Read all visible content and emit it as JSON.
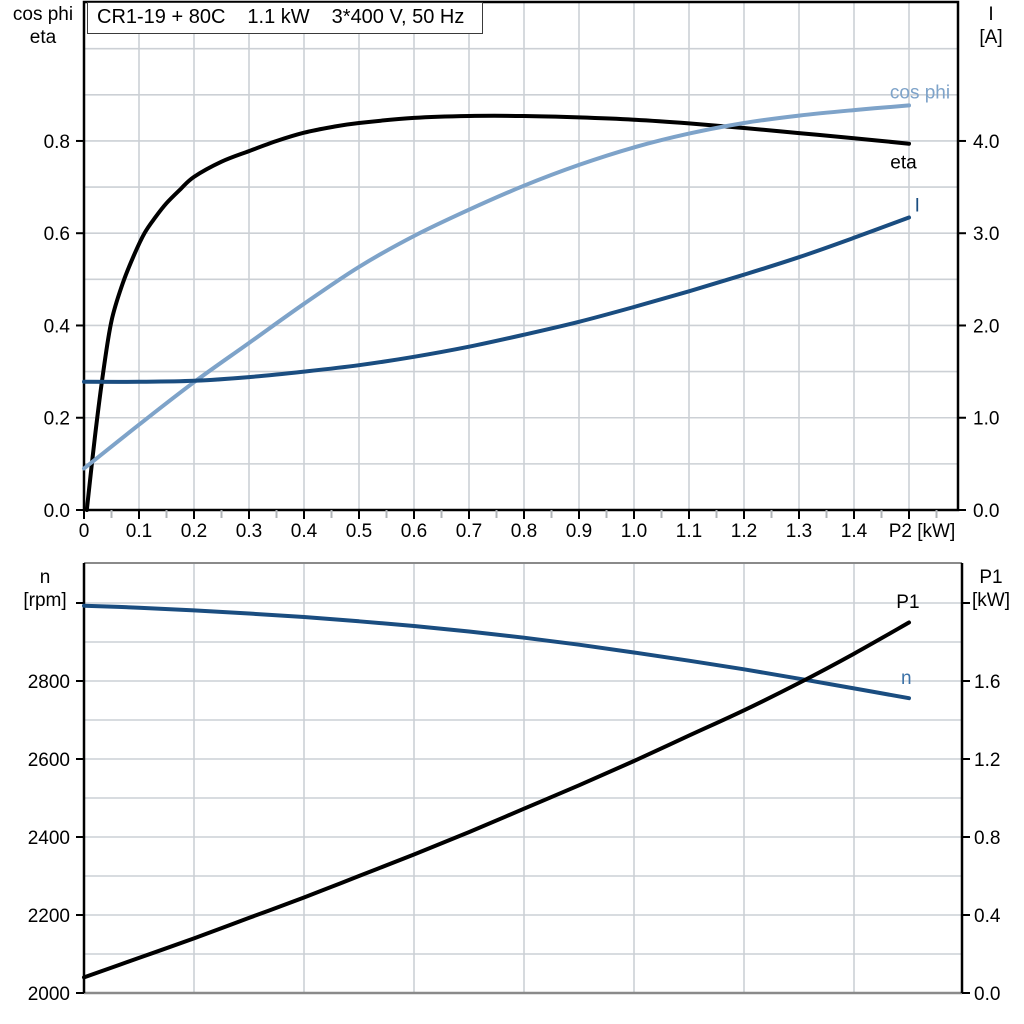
{
  "title_box": {
    "model": "CR1-19 + 80C",
    "power": "1.1 kW",
    "supply": "3*400 V, 50 Hz"
  },
  "axis_headers": {
    "top_left": [
      "cos phi",
      "eta"
    ],
    "top_right": [
      "I",
      "[A]"
    ],
    "bottom_left": [
      "n",
      "[rpm]"
    ],
    "bottom_right": [
      "P1",
      "[kW]"
    ]
  },
  "colors": {
    "black": "#000000",
    "light_blue": "#7ea3c9",
    "dark_blue": "#1a4d80",
    "n_label_blue": "#3c72a8",
    "grid": "#ccd0d5",
    "frame_gray": "#8a8a8a"
  },
  "chart_data": [
    {
      "type": "line",
      "title": "CR1-19 + 80C  1.1 kW  3*400 V, 50 Hz",
      "xlabel": "P2 [kW]",
      "x_range": [
        0,
        1.59
      ],
      "left_axis_range": [
        0,
        1.1
      ],
      "right_axis_range": [
        0,
        5.5
      ],
      "grid": "on",
      "x_tick_labels": [
        "0",
        "0.1",
        "0.2",
        "0.3",
        "0.4",
        "0.5",
        "0.6",
        "0.7",
        "0.8",
        "0.9",
        "1.0",
        "1.1",
        "1.2",
        "1.3",
        "1.4"
      ],
      "left_tick_labels": [
        "0.0",
        "0.2",
        "0.4",
        "0.6",
        "0.8"
      ],
      "right_tick_labels": [
        "0.0",
        "1.0",
        "2.0",
        "3.0",
        "4.0"
      ],
      "series": [
        {
          "name": "eta",
          "axis": "left",
          "color": "#000000",
          "x": [
            0.005,
            0.02,
            0.035,
            0.05,
            0.07,
            0.09,
            0.11,
            0.13,
            0.15,
            0.175,
            0.2,
            0.25,
            0.3,
            0.35,
            0.4,
            0.45,
            0.5,
            0.6,
            0.7,
            0.8,
            0.9,
            1.0,
            1.1,
            1.2,
            1.3,
            1.4,
            1.5
          ],
          "y": [
            0.0,
            0.16,
            0.3,
            0.41,
            0.49,
            0.55,
            0.6,
            0.635,
            0.665,
            0.695,
            0.722,
            0.755,
            0.778,
            0.8,
            0.818,
            0.83,
            0.839,
            0.85,
            0.854,
            0.854,
            0.851,
            0.846,
            0.838,
            0.828,
            0.817,
            0.806,
            0.794
          ],
          "label_at": {
            "x": 1.49,
            "y": 0.755
          }
        },
        {
          "name": "cos phi",
          "axis": "left",
          "color": "#7ea3c9",
          "x": [
            0,
            0.1,
            0.2,
            0.3,
            0.4,
            0.5,
            0.6,
            0.7,
            0.8,
            0.9,
            1.0,
            1.1,
            1.2,
            1.3,
            1.4,
            1.5
          ],
          "y": [
            0.09,
            0.185,
            0.277,
            0.362,
            0.447,
            0.527,
            0.594,
            0.651,
            0.703,
            0.748,
            0.786,
            0.816,
            0.839,
            0.855,
            0.867,
            0.877
          ],
          "label_at": {
            "x": 1.52,
            "y": 0.907
          }
        },
        {
          "name": "I",
          "axis": "right",
          "color": "#1a4d80",
          "x": [
            0,
            0.1,
            0.2,
            0.3,
            0.4,
            0.5,
            0.6,
            0.7,
            0.8,
            0.9,
            1.0,
            1.1,
            1.2,
            1.3,
            1.4,
            1.5
          ],
          "y": [
            1.39,
            1.39,
            1.4,
            1.44,
            1.5,
            1.57,
            1.66,
            1.77,
            1.9,
            2.04,
            2.2,
            2.37,
            2.55,
            2.74,
            2.95,
            3.17
          ],
          "label_at": {
            "x": 1.515,
            "y": 3.31
          }
        }
      ]
    },
    {
      "type": "line",
      "xlabel": "",
      "x_range": [
        0,
        1.596
      ],
      "left_axis_range": [
        2000,
        3102
      ],
      "right_axis_range": [
        0,
        2.205
      ],
      "grid": "on",
      "x_tick_labels": [],
      "left_tick_labels": [
        "2000",
        "2200",
        "2400",
        "2600",
        "2800"
      ],
      "right_tick_labels": [
        "0.0",
        "0.4",
        "0.8",
        "1.2",
        "1.6"
      ],
      "series": [
        {
          "name": "n",
          "axis": "left",
          "color": "#1a4d80",
          "label_color": "#3c72a8",
          "x": [
            0,
            0.1,
            0.2,
            0.3,
            0.4,
            0.5,
            0.6,
            0.7,
            0.8,
            0.9,
            1.0,
            1.1,
            1.2,
            1.3,
            1.4,
            1.5
          ],
          "y": [
            2993,
            2988,
            2981,
            2973,
            2964,
            2953,
            2941,
            2927,
            2911,
            2893,
            2873,
            2852,
            2830,
            2806,
            2781,
            2756
          ],
          "label_at": {
            "x": 1.495,
            "y": 2810
          }
        },
        {
          "name": "P1",
          "axis": "right",
          "color": "#000000",
          "x": [
            0,
            0.1,
            0.2,
            0.3,
            0.4,
            0.5,
            0.6,
            0.7,
            0.8,
            0.9,
            1.0,
            1.1,
            1.2,
            1.3,
            1.4,
            1.5
          ],
          "y": [
            0.08,
            0.18,
            0.28,
            0.385,
            0.49,
            0.6,
            0.71,
            0.825,
            0.945,
            1.065,
            1.19,
            1.32,
            1.45,
            1.59,
            1.74,
            1.9
          ],
          "label_at": {
            "x": 1.498,
            "y": 2.01
          }
        }
      ]
    }
  ]
}
